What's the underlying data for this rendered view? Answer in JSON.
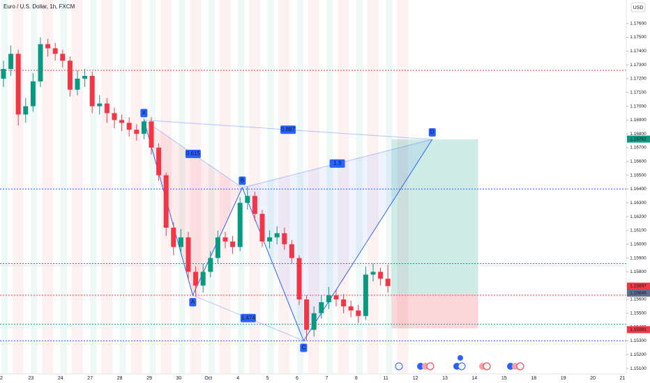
{
  "header": {
    "symbol": "Euro / U.S. Dollar, 1h, FXCM",
    "currency": "USD"
  },
  "chart_data": {
    "type": "candlestick",
    "ylim": [
      1.1506,
      1.1777
    ],
    "yticks": [
      {
        "value": 1.151,
        "label": "1.15100"
      },
      {
        "value": 1.152,
        "label": "1.15200"
      },
      {
        "value": 1.153,
        "label": "1.15300"
      },
      {
        "value": 1.154,
        "label": "1.15400"
      },
      {
        "value": 1.155,
        "label": "1.15500"
      },
      {
        "value": 1.156,
        "label": "1.15600"
      },
      {
        "value": 1.157,
        "label": "1.15700"
      },
      {
        "value": 1.158,
        "label": "1.15800"
      },
      {
        "value": 1.159,
        "label": "1.15900"
      },
      {
        "value": 1.16,
        "label": "1.16000"
      },
      {
        "value": 1.161,
        "label": "1.16100"
      },
      {
        "value": 1.162,
        "label": "1.16200"
      },
      {
        "value": 1.163,
        "label": "1.16300"
      },
      {
        "value": 1.164,
        "label": "1.16400"
      },
      {
        "value": 1.165,
        "label": "1.16500"
      },
      {
        "value": 1.166,
        "label": "1.16600"
      },
      {
        "value": 1.167,
        "label": "1.16700"
      },
      {
        "value": 1.168,
        "label": "1.16800"
      },
      {
        "value": 1.169,
        "label": "1.16900"
      },
      {
        "value": 1.17,
        "label": "1.17000"
      },
      {
        "value": 1.171,
        "label": "1.17100"
      },
      {
        "value": 1.172,
        "label": "1.17200"
      },
      {
        "value": 1.173,
        "label": "1.17300"
      },
      {
        "value": 1.174,
        "label": "1.17400"
      },
      {
        "value": 1.175,
        "label": "1.17500"
      },
      {
        "value": 1.176,
        "label": "1.17600"
      }
    ],
    "categories": [
      "2",
      "23",
      "24",
      "27",
      "28",
      "29",
      "30",
      "Oct",
      "4",
      "5",
      "6",
      "7",
      "8",
      "11",
      "12",
      "13",
      "14",
      "15",
      "18",
      "19",
      "20",
      "21"
    ],
    "up_color": "#089981",
    "down_color": "#f23645",
    "candles": {
      "open": [
        1.172,
        1.1727,
        1.1738,
        1.1694,
        1.17,
        1.1718,
        1.1745,
        1.1742,
        1.1738,
        1.1733,
        1.1712,
        1.172,
        1.1722,
        1.17,
        1.1702,
        1.1695,
        1.169,
        1.1688,
        1.1683,
        1.168,
        1.1689,
        1.167,
        1.165,
        1.1612,
        1.1598,
        1.1605,
        1.158,
        1.157,
        1.158,
        1.159,
        1.1605,
        1.1602,
        1.1598,
        1.163,
        1.1635,
        1.1622,
        1.1602,
        1.1605,
        1.1608,
        1.16,
        1.159,
        1.156,
        1.1538,
        1.155,
        1.1558,
        1.1563,
        1.156,
        1.1555,
        1.1552,
        1.1548,
        1.1578,
        1.158,
        1.1575
      ],
      "high": [
        1.1733,
        1.1744,
        1.1741,
        1.1706,
        1.1724,
        1.175,
        1.1749,
        1.1746,
        1.1741,
        1.1736,
        1.1726,
        1.1727,
        1.1725,
        1.1708,
        1.1706,
        1.1699,
        1.1694,
        1.1692,
        1.1687,
        1.1691,
        1.1692,
        1.1673,
        1.1652,
        1.1616,
        1.1611,
        1.1609,
        1.1584,
        1.1586,
        1.1595,
        1.161,
        1.1609,
        1.1606,
        1.1634,
        1.1642,
        1.1638,
        1.1625,
        1.161,
        1.1613,
        1.1612,
        1.1603,
        1.1592,
        1.1563,
        1.1555,
        1.1563,
        1.1569,
        1.1567,
        1.1564,
        1.1559,
        1.1556,
        1.1584,
        1.1586,
        1.1583,
        1.1585
      ],
      "low": [
        1.1714,
        1.1722,
        1.1686,
        1.1688,
        1.1696,
        1.1714,
        1.1736,
        1.1733,
        1.1728,
        1.1707,
        1.1708,
        1.1714,
        1.1695,
        1.1694,
        1.1688,
        1.1684,
        1.1682,
        1.1678,
        1.1675,
        1.1676,
        1.1665,
        1.1646,
        1.1606,
        1.1592,
        1.1594,
        1.1574,
        1.1562,
        1.1565,
        1.1576,
        1.1586,
        1.1597,
        1.1593,
        1.1595,
        1.1625,
        1.1617,
        1.1598,
        1.1597,
        1.16,
        1.1596,
        1.1586,
        1.1556,
        1.153,
        1.1533,
        1.1546,
        1.1553,
        1.1555,
        1.155,
        1.1547,
        1.1543,
        1.1545,
        1.1573,
        1.157,
        1.1565
      ],
      "close": [
        1.1727,
        1.1738,
        1.1694,
        1.17,
        1.1718,
        1.1745,
        1.1742,
        1.1738,
        1.1733,
        1.1712,
        1.172,
        1.1722,
        1.17,
        1.1702,
        1.1695,
        1.169,
        1.1688,
        1.1683,
        1.168,
        1.1689,
        1.167,
        1.165,
        1.1612,
        1.1598,
        1.1605,
        1.158,
        1.157,
        1.158,
        1.159,
        1.1605,
        1.1602,
        1.1598,
        1.163,
        1.1635,
        1.1622,
        1.1602,
        1.1605,
        1.1608,
        1.16,
        1.159,
        1.156,
        1.1538,
        1.155,
        1.1558,
        1.1563,
        1.156,
        1.1555,
        1.1552,
        1.1548,
        1.1578,
        1.158,
        1.1575,
        1.15697
      ]
    },
    "levels": [
      {
        "price": 1.1726,
        "color": "#f23645"
      },
      {
        "price": 1.164,
        "color": "#2962ff"
      },
      {
        "price": 1.1586,
        "color": "#089981"
      },
      {
        "price": 1.1563,
        "color": "#f23645"
      },
      {
        "price": 1.1542,
        "color": "#089981"
      },
      {
        "price": 1.153,
        "color": "#2962ff"
      }
    ],
    "pattern": {
      "points": [
        {
          "label": "X",
          "x": 19.0,
          "price": 1.169
        },
        {
          "label": "A",
          "x": 25.6,
          "price": 1.1563
        },
        {
          "label": "B",
          "x": 32.3,
          "price": 1.1641
        },
        {
          "label": "C",
          "x": 40.6,
          "price": 1.153
        },
        {
          "label": "D",
          "x": 58.0,
          "price": 1.1676
        }
      ],
      "ratios": [
        0.615,
        1.3,
        0.887,
        1.474
      ]
    },
    "position": {
      "start": 52.5,
      "end": 64.2,
      "target": 1.1676,
      "entry": 1.1564,
      "stop": 1.1539
    },
    "price_tags": [
      {
        "value": 1.16762,
        "color": "#089981"
      },
      {
        "value": 1.15697,
        "color": "#f23645",
        "time": "20:59"
      },
      {
        "value": 1.15646,
        "color": "#5d6e8c"
      },
      {
        "value": 1.15381,
        "color": "#f23645"
      }
    ]
  }
}
